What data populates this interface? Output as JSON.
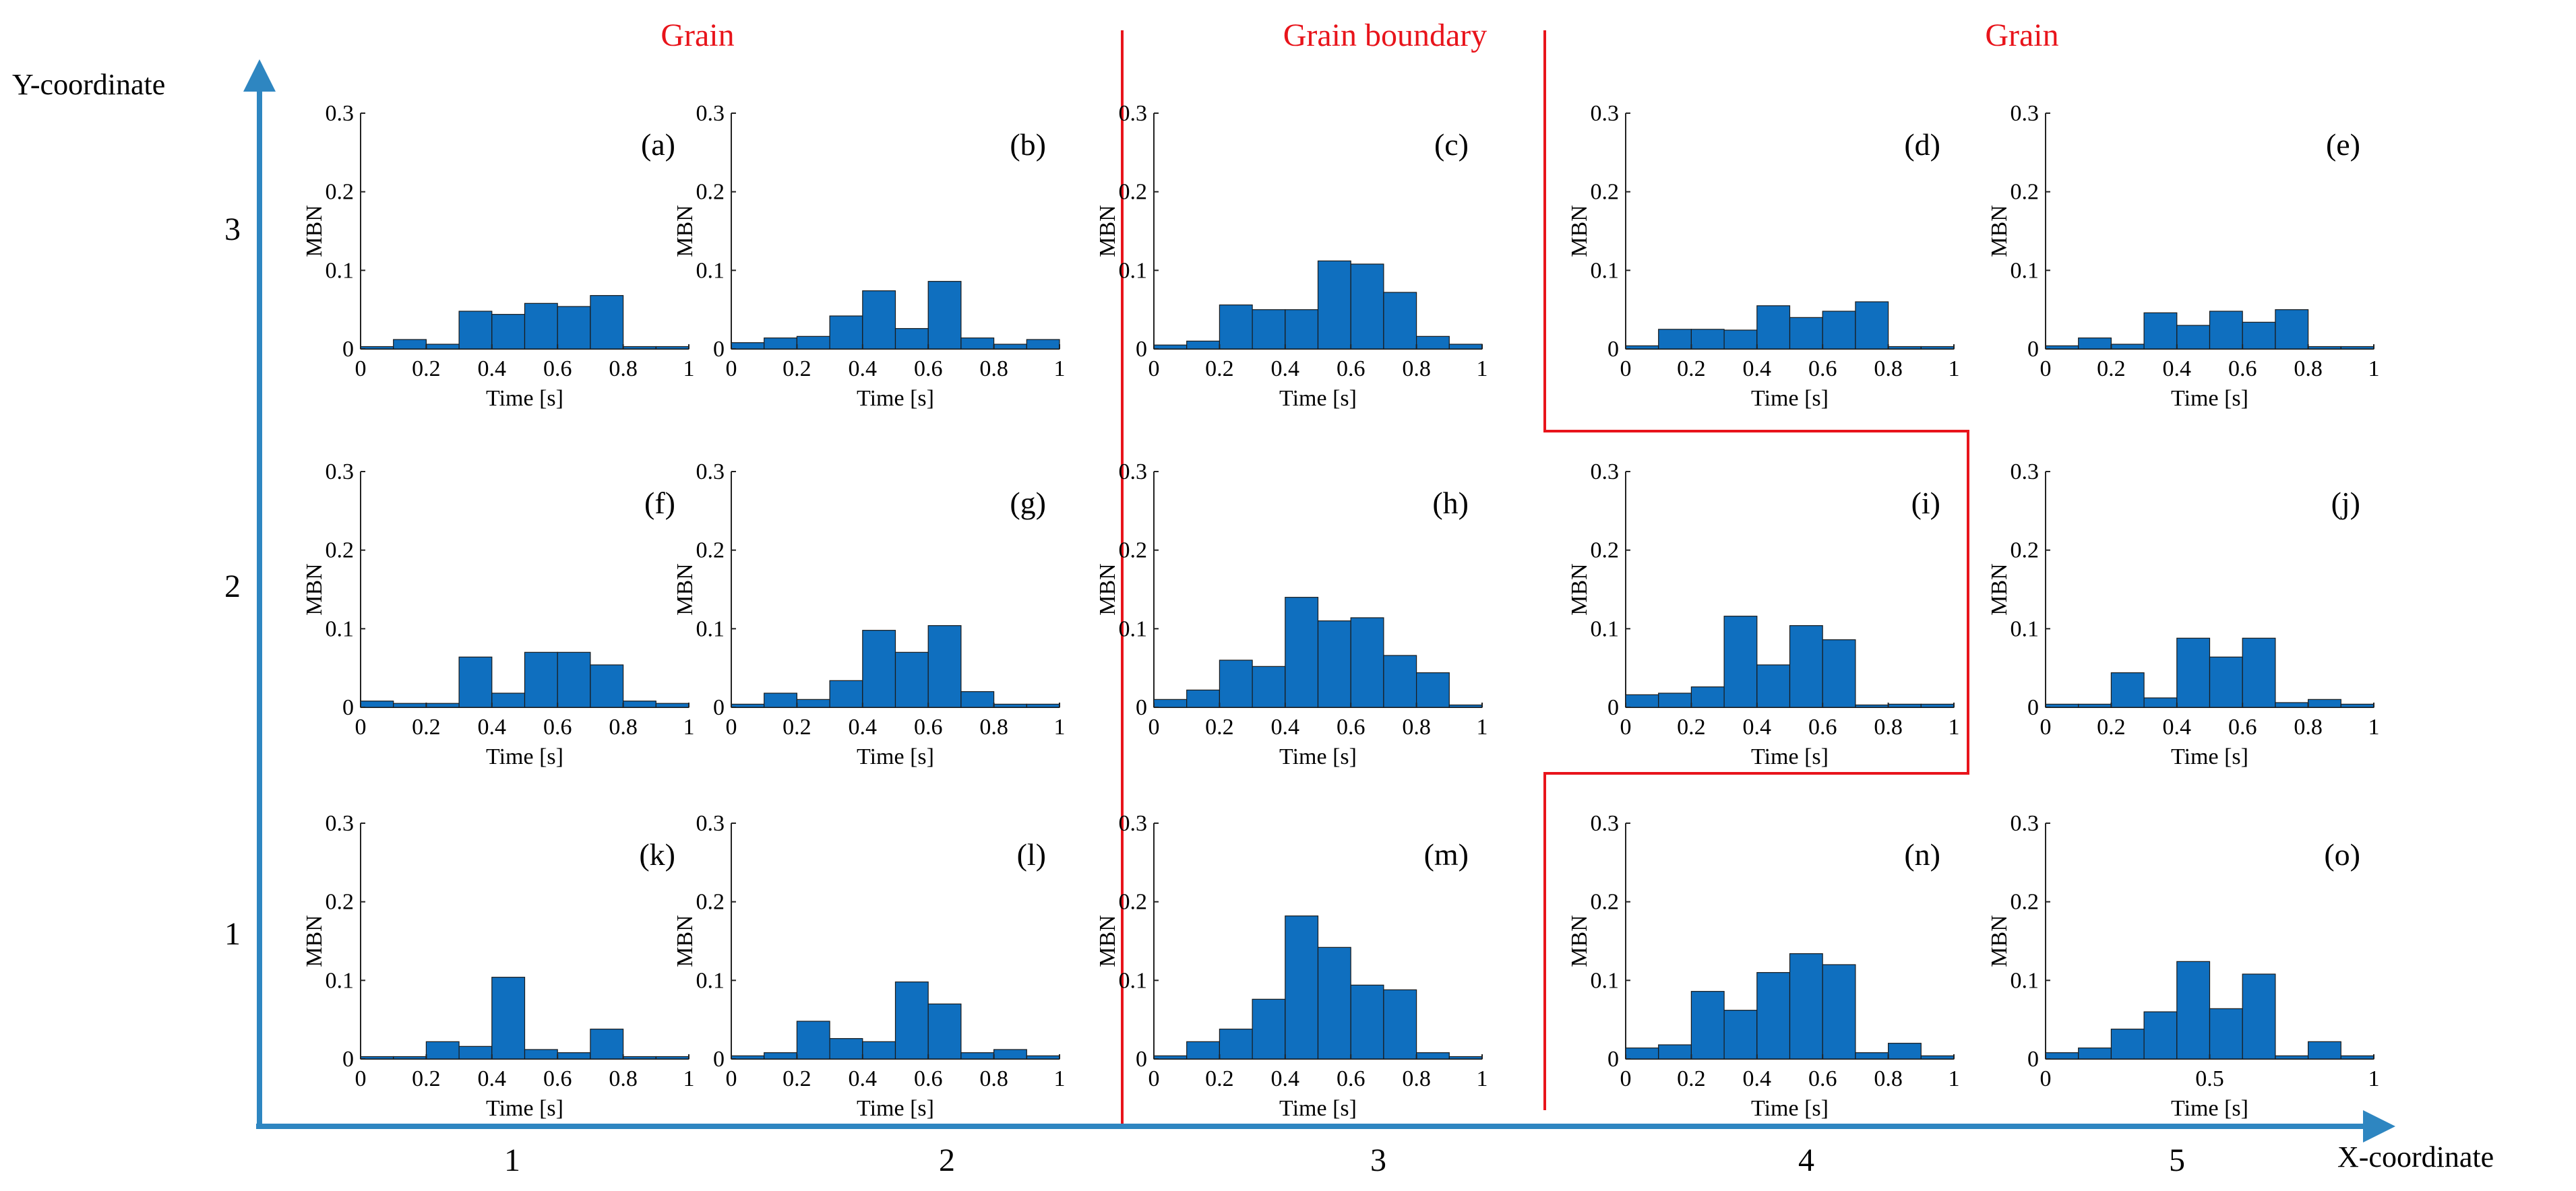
{
  "figure": {
    "headers": [
      "Grain",
      "Grain boundary",
      "Grain"
    ],
    "axis_titles": {
      "y": "Y-coordinate",
      "x": "X-coordinate"
    },
    "row_labels": [
      "3",
      "2",
      "1"
    ],
    "col_labels": [
      "1",
      "2",
      "3",
      "4",
      "5"
    ],
    "colors": {
      "bar": "#0f6fbf",
      "bar_stroke": "#1a1a1a",
      "axis_arrow": "#2e86c1",
      "boundary": "#e8141b"
    }
  },
  "chart_data": [
    {
      "label": "(a)",
      "type": "bar",
      "xlabel": "Time [s]",
      "ylabel": "MBN",
      "xlim": [
        0,
        1
      ],
      "ylim": [
        0,
        0.3
      ],
      "xticks": [
        "0",
        "0.2",
        "0.4",
        "0.6",
        "0.8",
        "1"
      ],
      "yticks": [
        "0",
        "0.1",
        "0.2",
        "0.3"
      ],
      "values": [
        0.003,
        0.012,
        0.006,
        0.048,
        0.044,
        0.058,
        0.054,
        0.068,
        0.003,
        0.003
      ]
    },
    {
      "label": "(b)",
      "type": "bar",
      "xlabel": "Time [s]",
      "ylabel": "MBN",
      "xlim": [
        0,
        1
      ],
      "ylim": [
        0,
        0.3
      ],
      "xticks": [
        "0",
        "0.2",
        "0.4",
        "0.6",
        "0.8",
        "1"
      ],
      "yticks": [
        "0",
        "0.1",
        "0.2",
        "0.3"
      ],
      "values": [
        0.008,
        0.014,
        0.016,
        0.042,
        0.074,
        0.026,
        0.086,
        0.014,
        0.006,
        0.012
      ]
    },
    {
      "label": "(c)",
      "type": "bar",
      "xlabel": "Time [s]",
      "ylabel": "MBN",
      "xlim": [
        0,
        1
      ],
      "ylim": [
        0,
        0.3
      ],
      "xticks": [
        "0",
        "0.2",
        "0.4",
        "0.6",
        "0.8",
        "1"
      ],
      "yticks": [
        "0",
        "0.1",
        "0.2",
        "0.3"
      ],
      "values": [
        0.005,
        0.01,
        0.056,
        0.05,
        0.05,
        0.112,
        0.108,
        0.072,
        0.016,
        0.006
      ]
    },
    {
      "label": "(d)",
      "type": "bar",
      "xlabel": "Time [s]",
      "ylabel": "MBN",
      "xlim": [
        0,
        1
      ],
      "ylim": [
        0,
        0.3
      ],
      "xticks": [
        "0",
        "0.2",
        "0.4",
        "0.6",
        "0.8",
        "1"
      ],
      "yticks": [
        "0",
        "0.1",
        "0.2",
        "0.3"
      ],
      "values": [
        0.004,
        0.025,
        0.025,
        0.024,
        0.055,
        0.04,
        0.048,
        0.06,
        0.003,
        0.003
      ]
    },
    {
      "label": "(e)",
      "type": "bar",
      "xlabel": "Time [s]",
      "ylabel": "MBN",
      "xlim": [
        0,
        1
      ],
      "ylim": [
        0,
        0.3
      ],
      "xticks": [
        "0",
        "0.2",
        "0.4",
        "0.6",
        "0.8",
        "1"
      ],
      "yticks": [
        "0",
        "0.1",
        "0.2",
        "0.3"
      ],
      "values": [
        0.004,
        0.014,
        0.006,
        0.046,
        0.03,
        0.048,
        0.034,
        0.05,
        0.003,
        0.003
      ]
    },
    {
      "label": "(f)",
      "type": "bar",
      "xlabel": "Time [s]",
      "ylabel": "MBN",
      "xlim": [
        0,
        1
      ],
      "ylim": [
        0,
        0.3
      ],
      "xticks": [
        "0",
        "0.2",
        "0.4",
        "0.6",
        "0.8",
        "1"
      ],
      "yticks": [
        "0",
        "0.1",
        "0.2",
        "0.3"
      ],
      "values": [
        0.008,
        0.005,
        0.005,
        0.064,
        0.018,
        0.07,
        0.07,
        0.054,
        0.008,
        0.005
      ]
    },
    {
      "label": "(g)",
      "type": "bar",
      "xlabel": "Time [s]",
      "ylabel": "MBN",
      "xlim": [
        0,
        1
      ],
      "ylim": [
        0,
        0.3
      ],
      "xticks": [
        "0",
        "0.2",
        "0.4",
        "0.6",
        "0.8",
        "1"
      ],
      "yticks": [
        "0",
        "0.1",
        "0.2",
        "0.3"
      ],
      "values": [
        0.004,
        0.018,
        0.01,
        0.034,
        0.098,
        0.07,
        0.104,
        0.02,
        0.004,
        0.004
      ]
    },
    {
      "label": "(h)",
      "type": "bar",
      "xlabel": "Time [s]",
      "ylabel": "MBN",
      "xlim": [
        0,
        1
      ],
      "ylim": [
        0,
        0.3
      ],
      "xticks": [
        "0",
        "0.2",
        "0.4",
        "0.6",
        "0.8",
        "1"
      ],
      "yticks": [
        "0",
        "0.1",
        "0.2",
        "0.3"
      ],
      "values": [
        0.01,
        0.022,
        0.06,
        0.052,
        0.14,
        0.11,
        0.114,
        0.066,
        0.044,
        0.003
      ]
    },
    {
      "label": "(i)",
      "type": "bar",
      "xlabel": "Time [s]",
      "ylabel": "MBN",
      "xlim": [
        0,
        1
      ],
      "ylim": [
        0,
        0.3
      ],
      "xticks": [
        "0",
        "0.2",
        "0.4",
        "0.6",
        "0.8",
        "1"
      ],
      "yticks": [
        "0",
        "0.1",
        "0.2",
        "0.3"
      ],
      "values": [
        0.016,
        0.018,
        0.026,
        0.116,
        0.054,
        0.104,
        0.086,
        0.003,
        0.004,
        0.004
      ]
    },
    {
      "label": "(j)",
      "type": "bar",
      "xlabel": "Time [s]",
      "ylabel": "MBN",
      "xlim": [
        0,
        1
      ],
      "ylim": [
        0,
        0.3
      ],
      "xticks": [
        "0",
        "0.2",
        "0.4",
        "0.6",
        "0.8",
        "1"
      ],
      "yticks": [
        "0",
        "0.1",
        "0.2",
        "0.3"
      ],
      "values": [
        0.004,
        0.004,
        0.044,
        0.012,
        0.088,
        0.064,
        0.088,
        0.006,
        0.01,
        0.004
      ]
    },
    {
      "label": "(k)",
      "type": "bar",
      "xlabel": "Time [s]",
      "ylabel": "MBN",
      "xlim": [
        0,
        1
      ],
      "ylim": [
        0,
        0.3
      ],
      "xticks": [
        "0",
        "0.2",
        "0.4",
        "0.6",
        "0.8",
        "1"
      ],
      "yticks": [
        "0",
        "0.1",
        "0.2",
        "0.3"
      ],
      "values": [
        0.003,
        0.003,
        0.022,
        0.016,
        0.104,
        0.012,
        0.008,
        0.038,
        0.003,
        0.003
      ]
    },
    {
      "label": "(l)",
      "type": "bar",
      "xlabel": "Time [s]",
      "ylabel": "MBN",
      "xlim": [
        0,
        1
      ],
      "ylim": [
        0,
        0.3
      ],
      "xticks": [
        "0",
        "0.2",
        "0.4",
        "0.6",
        "0.8",
        "1"
      ],
      "yticks": [
        "0",
        "0.1",
        "0.2",
        "0.3"
      ],
      "values": [
        0.004,
        0.008,
        0.048,
        0.026,
        0.022,
        0.098,
        0.07,
        0.008,
        0.012,
        0.004
      ]
    },
    {
      "label": "(m)",
      "type": "bar",
      "xlabel": "Time [s]",
      "ylabel": "MBN",
      "xlim": [
        0,
        1
      ],
      "ylim": [
        0,
        0.3
      ],
      "xticks": [
        "0",
        "0.2",
        "0.4",
        "0.6",
        "0.8",
        "1"
      ],
      "yticks": [
        "0",
        "0.1",
        "0.2",
        "0.3"
      ],
      "values": [
        0.004,
        0.022,
        0.038,
        0.076,
        0.182,
        0.142,
        0.094,
        0.088,
        0.008,
        0.003
      ]
    },
    {
      "label": "(n)",
      "type": "bar",
      "xlabel": "Time [s]",
      "ylabel": "MBN",
      "xlim": [
        0,
        1
      ],
      "ylim": [
        0,
        0.3
      ],
      "xticks": [
        "0",
        "0.2",
        "0.4",
        "0.6",
        "0.8",
        "1"
      ],
      "yticks": [
        "0",
        "0.1",
        "0.2",
        "0.3"
      ],
      "values": [
        0.014,
        0.018,
        0.086,
        0.062,
        0.11,
        0.134,
        0.12,
        0.008,
        0.02,
        0.004
      ]
    },
    {
      "label": "(o)",
      "type": "bar",
      "xlabel": "Time [s]",
      "ylabel": "MBN",
      "xlim": [
        0,
        1
      ],
      "ylim": [
        0,
        0.3
      ],
      "xticks": [
        "0",
        "0.5",
        "1"
      ],
      "yticks": [
        "0",
        "0.1",
        "0.2",
        "0.3"
      ],
      "values": [
        0.008,
        0.014,
        0.038,
        0.06,
        0.124,
        0.064,
        0.108,
        0.004,
        0.022,
        0.004
      ]
    }
  ]
}
